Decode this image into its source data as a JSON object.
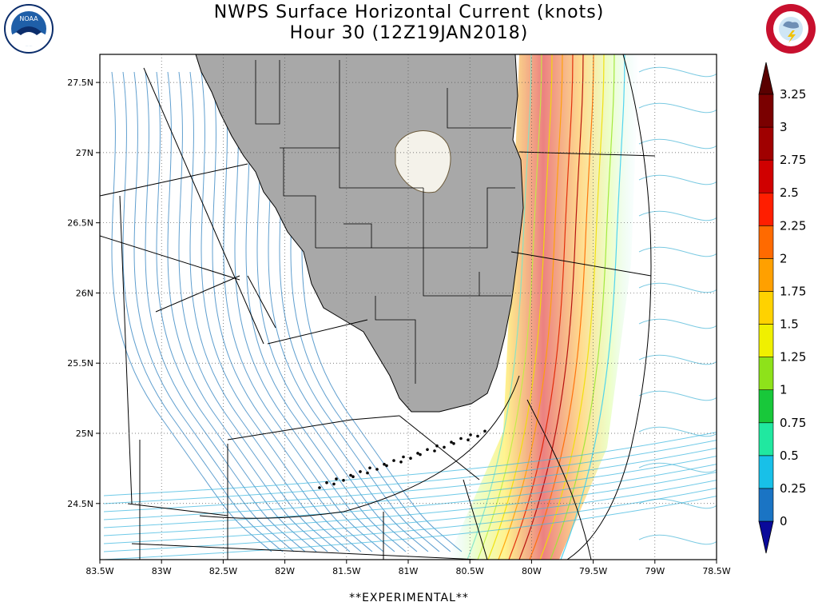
{
  "title": {
    "line1": "NWPS Surface Horizontal Current (knots)",
    "line2": "Hour 30 (12Z19JAN2018)"
  },
  "logos": {
    "left": {
      "name": "noaa-logo",
      "text": "NOAA",
      "color": "#1f5fa8"
    },
    "right": {
      "name": "nws-logo",
      "ring_text": "NATIONAL WEATHER SERVICE",
      "color": "#c8102e"
    }
  },
  "axes": {
    "lon_labels": [
      "83.5W",
      "83W",
      "82.5W",
      "82W",
      "81.5W",
      "81W",
      "80.5W",
      "80W",
      "79.5W",
      "79W",
      "78.5W"
    ],
    "lat_labels": [
      "27.5N",
      "27N",
      "26.5N",
      "26N",
      "25.5N",
      "25N",
      "24.5N"
    ],
    "lon_range": [
      -83.5,
      -78.5
    ],
    "lat_range": [
      24.1,
      27.7
    ],
    "grid": "dotted"
  },
  "colorbar": {
    "levels": [
      "0",
      "0.25",
      "0.5",
      "0.75",
      "1",
      "1.25",
      "1.5",
      "1.75",
      "2",
      "2.25",
      "2.5",
      "2.75",
      "3",
      "3.25"
    ],
    "colors": [
      "#0a0a9a",
      "#1a74c4",
      "#18c0e8",
      "#20e8a0",
      "#18c83a",
      "#8ee21a",
      "#f0f000",
      "#ffd200",
      "#ffa000",
      "#ff6a00",
      "#ff1e00",
      "#d00000",
      "#a00000",
      "#7a0000",
      "#5a0000"
    ]
  },
  "colors": {
    "land": "#a8a8a8",
    "lake": "#f4f2ea",
    "borders": "#000000",
    "background": "#ffffff"
  },
  "footer": "**EXPERIMENTAL**"
}
